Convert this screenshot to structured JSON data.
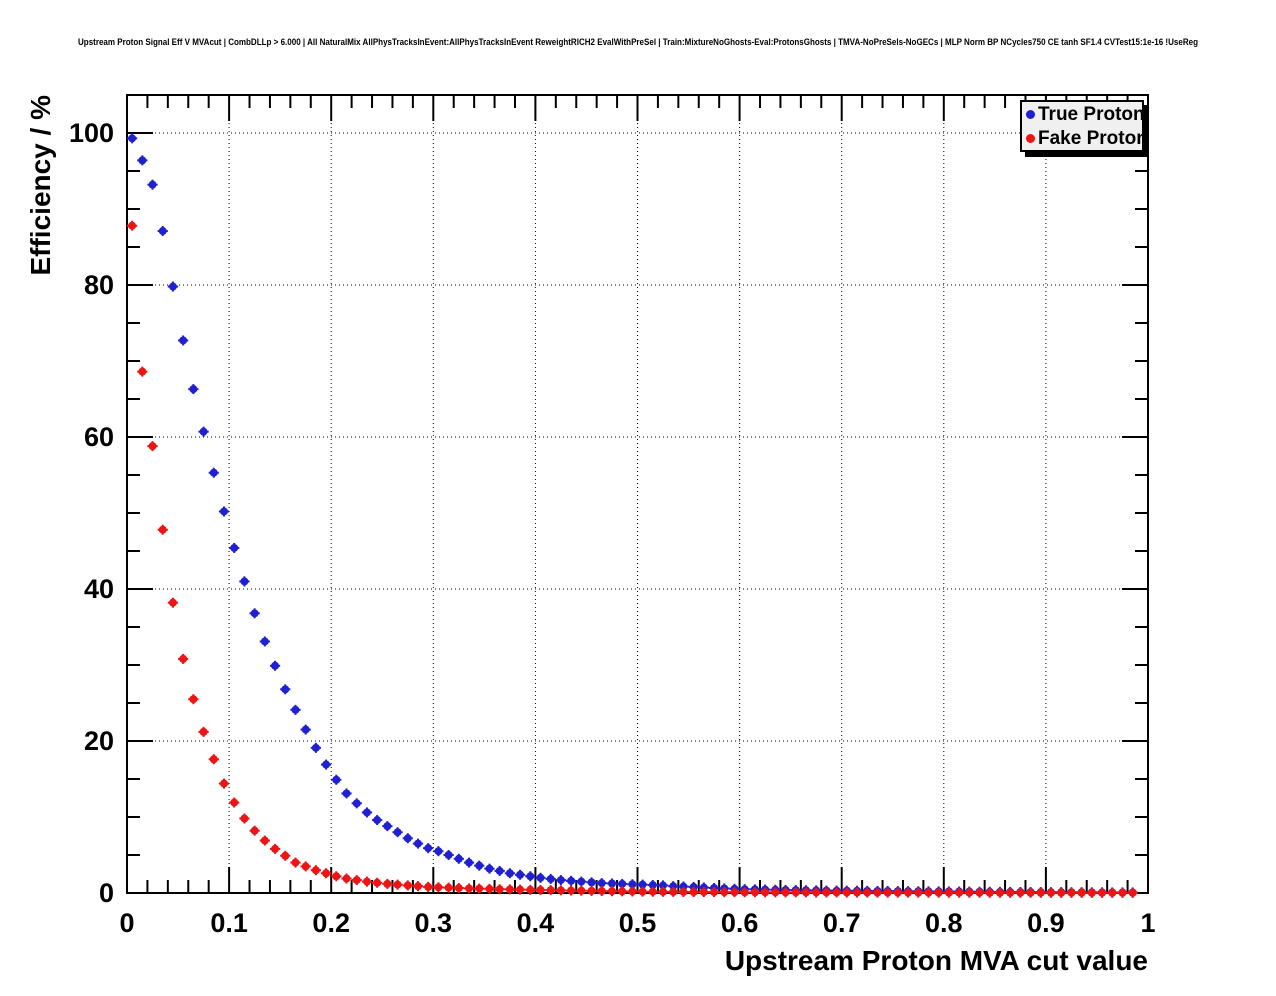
{
  "header": {
    "title": "Upstream Proton Signal Eff V MVAcut | CombDLLp > 6.000 | All NaturalMix AllPhysTracksInEvent:AllPhysTracksInEvent ReweightRICH2 EvalWithPreSel | Train:MixtureNoGhosts-Eval:ProtonsGhosts | TMVA-NoPreSels-NoGECs | MLP Norm BP NCycles750 CE tanh SF1.4 CVTest15:1e-16 !UseReg"
  },
  "colors": {
    "true_proton": "#2020d0",
    "fake_proton": "#ee1414",
    "legend_background": "#f0f0f0",
    "axis": "#000000",
    "background": "#ffffff"
  },
  "chart_data": {
    "type": "scatter",
    "title": "Upstream Proton Signal Eff V MVAcut | CombDLLp > 6.000 | All NaturalMix AllPhysTracksInEvent:AllPhysTracksInEvent ReweightRICH2 EvalWithPreSel | Train:MixtureNoGhosts-Eval:ProtonsGhosts | TMVA-NoPreSels-NoGECs | MLP Norm BP NCycles750 CE tanh SF1.4 CVTest15:1e-16 !UseReg",
    "xlabel": "Upstream Proton MVA cut value",
    "ylabel": "Efficiency / %",
    "xlim": [
      0,
      1
    ],
    "ylim": [
      0,
      105
    ],
    "grid": true,
    "grid_style": "dotted",
    "legend_position": "top-right",
    "marker": "filled-circle",
    "x_error": 0.005,
    "x_major_ticks": [
      0,
      0.1,
      0.2,
      0.3,
      0.4,
      0.5,
      0.6,
      0.7,
      0.8,
      0.9,
      1
    ],
    "x_tick_labels": [
      "0",
      "0.1",
      "0.2",
      "0.3",
      "0.4",
      "0.5",
      "0.6",
      "0.7",
      "0.8",
      "0.9",
      "1"
    ],
    "x_minor_step": 0.02,
    "y_major_ticks": [
      0,
      20,
      40,
      60,
      80,
      100
    ],
    "y_tick_labels": [
      "0",
      "20",
      "40",
      "60",
      "80",
      "100"
    ],
    "y_minor_step": 5,
    "x": [
      0.005,
      0.015,
      0.025,
      0.035,
      0.045,
      0.055,
      0.065,
      0.075,
      0.085,
      0.095,
      0.105,
      0.115,
      0.125,
      0.135,
      0.145,
      0.155,
      0.165,
      0.175,
      0.185,
      0.195,
      0.205,
      0.215,
      0.225,
      0.235,
      0.245,
      0.255,
      0.265,
      0.275,
      0.285,
      0.295,
      0.305,
      0.315,
      0.325,
      0.335,
      0.345,
      0.355,
      0.365,
      0.375,
      0.385,
      0.395,
      0.405,
      0.415,
      0.425,
      0.435,
      0.445,
      0.455,
      0.465,
      0.475,
      0.485,
      0.495,
      0.505,
      0.515,
      0.525,
      0.535,
      0.545,
      0.555,
      0.565,
      0.575,
      0.585,
      0.595,
      0.605,
      0.615,
      0.625,
      0.635,
      0.645,
      0.655,
      0.665,
      0.675,
      0.685,
      0.695,
      0.705,
      0.715,
      0.725,
      0.735,
      0.745,
      0.755,
      0.765,
      0.775,
      0.785,
      0.795,
      0.805,
      0.815,
      0.825,
      0.835,
      0.845,
      0.855,
      0.865,
      0.875,
      0.885,
      0.895,
      0.905,
      0.915,
      0.925,
      0.935,
      0.945,
      0.955,
      0.965,
      0.975,
      0.985
    ],
    "series": [
      {
        "name": "True Proton",
        "color": "#2020d0",
        "values": [
          99.3,
          96.4,
          93.2,
          87.1,
          79.8,
          72.7,
          66.3,
          60.7,
          55.3,
          50.2,
          45.4,
          41.0,
          36.8,
          33.1,
          29.9,
          26.8,
          24.1,
          21.5,
          19.1,
          16.9,
          14.9,
          13.1,
          11.8,
          10.6,
          9.6,
          8.8,
          8.0,
          7.2,
          6.5,
          5.9,
          5.5,
          5.0,
          4.5,
          4.0,
          3.6,
          3.2,
          2.9,
          2.6,
          2.4,
          2.2,
          2.0,
          1.85,
          1.7,
          1.6,
          1.5,
          1.4,
          1.3,
          1.25,
          1.2,
          1.15,
          1.1,
          1.05,
          1.0,
          0.9,
          0.85,
          0.8,
          0.72,
          0.66,
          0.6,
          0.55,
          0.5,
          0.48,
          0.45,
          0.42,
          0.4,
          0.38,
          0.36,
          0.34,
          0.32,
          0.31,
          0.3,
          0.29,
          0.28,
          0.27,
          0.26,
          0.25,
          0.24,
          0.23,
          0.22,
          0.21,
          0.2,
          0.19,
          0.18,
          0.17,
          0.16,
          0.15,
          0.14,
          0.13,
          0.13,
          0.12,
          0.11,
          0.11,
          0.1,
          0.1,
          0.09,
          0.09,
          0.08,
          0.08,
          0.07
        ]
      },
      {
        "name": "Fake Proton",
        "color": "#ee1414",
        "values": [
          87.8,
          68.6,
          58.8,
          47.8,
          38.2,
          30.8,
          25.5,
          21.2,
          17.6,
          14.4,
          11.9,
          9.8,
          8.2,
          6.9,
          5.8,
          4.9,
          4.0,
          3.5,
          3.0,
          2.6,
          2.2,
          1.9,
          1.7,
          1.5,
          1.35,
          1.2,
          1.1,
          1.0,
          0.9,
          0.8,
          0.75,
          0.7,
          0.65,
          0.6,
          0.58,
          0.55,
          0.5,
          0.48,
          0.45,
          0.42,
          0.4,
          0.38,
          0.35,
          0.32,
          0.3,
          0.28,
          0.26,
          0.24,
          0.22,
          0.2,
          0.18,
          0.17,
          0.16,
          0.15,
          0.14,
          0.13,
          0.13,
          0.12,
          0.11,
          0.11,
          0.1,
          0.1,
          0.09,
          0.09,
          0.08,
          0.08,
          0.08,
          0.07,
          0.07,
          0.07,
          0.06,
          0.06,
          0.06,
          0.05,
          0.05,
          0.05,
          0.05,
          0.05,
          0.04,
          0.04,
          0.04,
          0.04,
          0.04,
          0.04,
          0.03,
          0.03,
          0.03,
          0.03,
          0.03,
          0.03,
          0.03,
          0.02,
          0.02,
          0.02,
          0.02,
          0.02,
          0.02,
          0.02,
          0.02
        ]
      }
    ]
  }
}
